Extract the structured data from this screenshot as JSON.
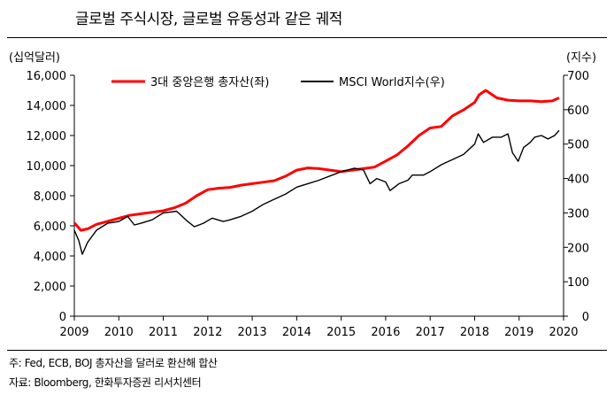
{
  "header": {
    "title": "글로벌 주식시장, 글로벌 유동성과 같은 궤적"
  },
  "notes": {
    "note": "주: Fed, ECB, BOJ 총자산을 달러로 환산해 합산",
    "source": "자료: Bloomberg, 한화투자증권 리서치센터"
  },
  "colors": {
    "series_left": "#ff0000",
    "series_right": "#000000",
    "axis": "#000000"
  },
  "chart_data": {
    "type": "line",
    "xlim": [
      2009,
      2020
    ],
    "x_ticks": [
      2009,
      2010,
      2011,
      2012,
      2013,
      2014,
      2015,
      2016,
      2017,
      2018,
      2019,
      2020
    ],
    "y_left": {
      "unit_label": "(십억달러)",
      "lim": [
        0,
        16000
      ],
      "ticks": [
        "0",
        "2,000",
        "4,000",
        "6,000",
        "8,000",
        "10,000",
        "12,000",
        "14,000",
        "16,000"
      ]
    },
    "y_right": {
      "unit_label": "(지수)",
      "lim": [
        0,
        700
      ],
      "ticks": [
        "0",
        "100",
        "200",
        "300",
        "400",
        "500",
        "600",
        "700"
      ]
    },
    "grid": false,
    "legend_position": "top",
    "series": [
      {
        "name": "3대 중앙은행 총자산(좌)",
        "axis": "left",
        "color": "#ff0000",
        "x": [
          2009.0,
          2009.15,
          2009.3,
          2009.5,
          2009.75,
          2010.0,
          2010.25,
          2010.5,
          2010.75,
          2011.0,
          2011.25,
          2011.5,
          2011.75,
          2012.0,
          2012.25,
          2012.5,
          2012.75,
          2013.0,
          2013.25,
          2013.5,
          2013.75,
          2014.0,
          2014.25,
          2014.5,
          2014.75,
          2015.0,
          2015.25,
          2015.5,
          2015.75,
          2016.0,
          2016.25,
          2016.5,
          2016.75,
          2017.0,
          2017.25,
          2017.5,
          2017.75,
          2018.0,
          2018.1,
          2018.25,
          2018.5,
          2018.75,
          2019.0,
          2019.25,
          2019.5,
          2019.75,
          2019.9
        ],
        "values": [
          6200,
          5700,
          5800,
          6100,
          6300,
          6500,
          6700,
          6800,
          6900,
          7000,
          7200,
          7500,
          8000,
          8400,
          8500,
          8550,
          8700,
          8800,
          8900,
          9000,
          9300,
          9700,
          9850,
          9800,
          9700,
          9600,
          9700,
          9800,
          9900,
          10300,
          10700,
          11300,
          12000,
          12500,
          12600,
          13300,
          13700,
          14200,
          14700,
          15000,
          14500,
          14350,
          14300,
          14300,
          14250,
          14300,
          14500
        ]
      },
      {
        "name": "MSCI World지수(우)",
        "axis": "right",
        "color": "#000000",
        "x": [
          2009.0,
          2009.1,
          2009.18,
          2009.3,
          2009.5,
          2009.75,
          2010.0,
          2010.2,
          2010.35,
          2010.5,
          2010.75,
          2011.0,
          2011.3,
          2011.55,
          2011.7,
          2011.9,
          2012.1,
          2012.35,
          2012.5,
          2012.75,
          2013.0,
          2013.25,
          2013.5,
          2013.75,
          2014.0,
          2014.25,
          2014.5,
          2014.8,
          2015.0,
          2015.3,
          2015.5,
          2015.65,
          2015.8,
          2016.0,
          2016.1,
          2016.3,
          2016.5,
          2016.6,
          2016.85,
          2017.0,
          2017.25,
          2017.5,
          2017.75,
          2018.0,
          2018.08,
          2018.2,
          2018.4,
          2018.6,
          2018.75,
          2018.85,
          2018.98,
          2019.1,
          2019.25,
          2019.35,
          2019.5,
          2019.65,
          2019.8,
          2019.9
        ],
        "values": [
          250,
          220,
          180,
          215,
          250,
          270,
          275,
          290,
          265,
          270,
          280,
          300,
          305,
          275,
          260,
          270,
          285,
          275,
          280,
          290,
          305,
          325,
          340,
          355,
          375,
          385,
          395,
          410,
          420,
          430,
          425,
          385,
          400,
          390,
          365,
          385,
          395,
          410,
          410,
          420,
          440,
          455,
          470,
          500,
          530,
          505,
          520,
          520,
          530,
          475,
          450,
          490,
          505,
          520,
          525,
          515,
          525,
          540
        ]
      }
    ]
  }
}
